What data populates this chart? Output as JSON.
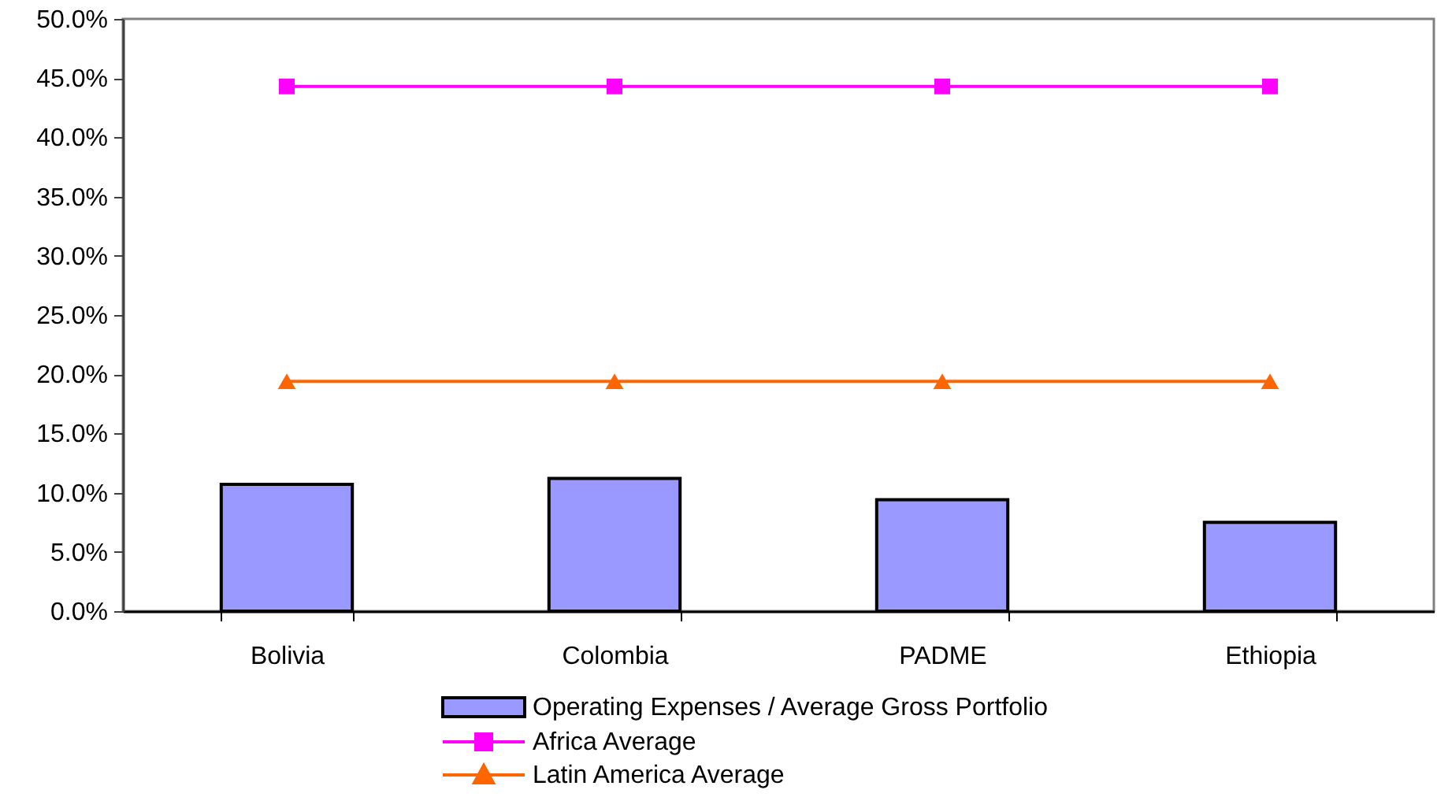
{
  "chart_data": {
    "type": "bar",
    "categories": [
      "Bolivia",
      "Colombia",
      "PADME",
      "Ethiopia"
    ],
    "series": [
      {
        "name": "Operating Expenses / Average Gross Portfolio",
        "color": "#9999ff",
        "values": [
          10.7,
          11.2,
          9.4,
          7.5
        ]
      },
      {
        "name": "Africa Average",
        "type": "line",
        "color": "#ff00ff",
        "marker": "square",
        "values": [
          44.3,
          44.3,
          44.3,
          44.3
        ]
      },
      {
        "name": "Latin America Average",
        "type": "line",
        "color": "#ff6600",
        "marker": "triangle",
        "values": [
          19.4,
          19.4,
          19.4,
          19.4
        ]
      }
    ],
    "ylim": [
      0,
      50
    ],
    "yticks": [
      {
        "value": 0,
        "label": "0.0%"
      },
      {
        "value": 5,
        "label": "5.0%"
      },
      {
        "value": 10,
        "label": "10.0%"
      },
      {
        "value": 15,
        "label": "15.0%"
      },
      {
        "value": 20,
        "label": "20.0%"
      },
      {
        "value": 25,
        "label": "25.0%"
      },
      {
        "value": 30,
        "label": "30.0%"
      },
      {
        "value": 35,
        "label": "35.0%"
      },
      {
        "value": 40,
        "label": "40.0%"
      },
      {
        "value": 45,
        "label": "45.0%"
      },
      {
        "value": 50,
        "label": "50.0%"
      }
    ],
    "grid": false,
    "legend": "bottom",
    "line_style": "solid"
  }
}
